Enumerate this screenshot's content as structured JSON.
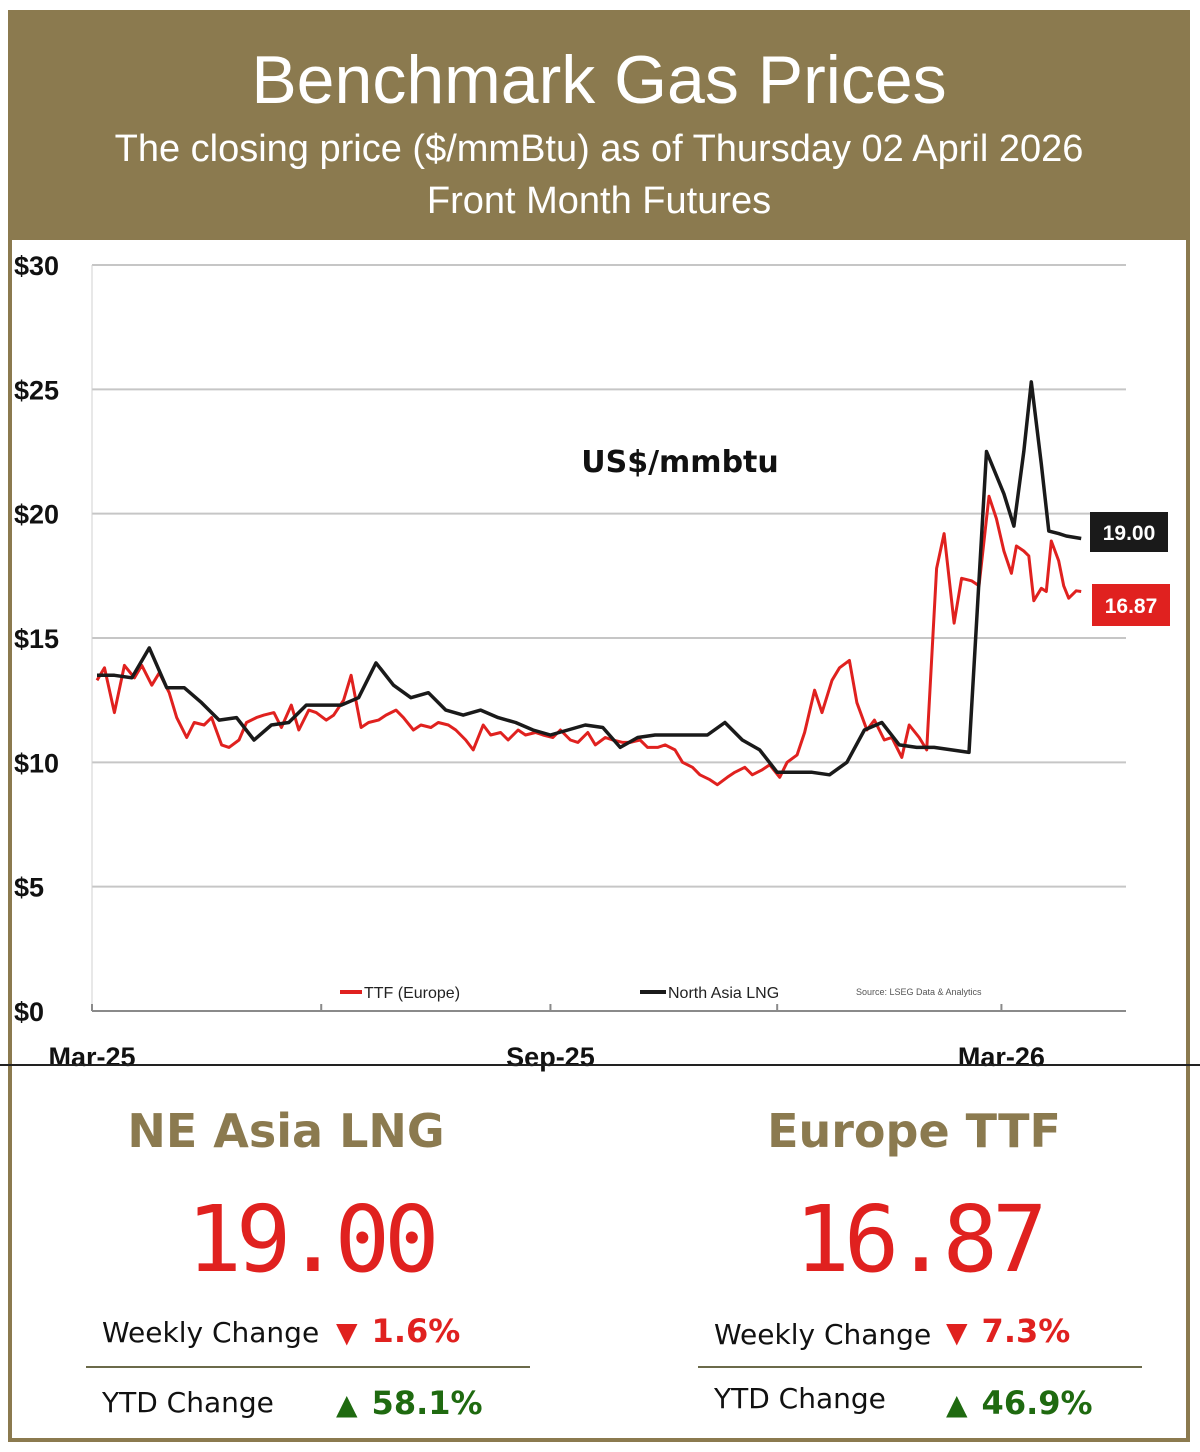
{
  "header": {
    "title": "Benchmark Gas Prices",
    "subtitle": "The closing price ($/mmBtu) as of Thursday 02 April 2026",
    "subtitle2": "Front Month  Futures"
  },
  "colors": {
    "header_bg": "#8b7a4f",
    "lng": "#1a1a1a",
    "ttf": "#e0211f",
    "up": "#1f6a10",
    "down": "#e0211f"
  },
  "chart_data": {
    "type": "line",
    "title": "US$/mmbtu",
    "ylim": [
      0,
      30
    ],
    "y_ticks": [
      "$0",
      "$5",
      "$10",
      "$15",
      "$20",
      "$25",
      "$30"
    ],
    "x_ticks": [
      "Mar-25",
      "Sep-25",
      "Mar-26"
    ],
    "grid": true,
    "legend_position": "bottom",
    "source": "Source: LSEG Data & Analytics",
    "series": [
      {
        "name": "North Asia LNG",
        "color": "#1a1a1a",
        "end_label": "19.00",
        "x": [
          "2025-03-03",
          "2025-03-10",
          "2025-03-17",
          "2025-03-24",
          "2025-03-31",
          "2025-04-07",
          "2025-04-14",
          "2025-04-21",
          "2025-04-28",
          "2025-05-05",
          "2025-05-12",
          "2025-05-19",
          "2025-05-26",
          "2025-06-02",
          "2025-06-09",
          "2025-06-16",
          "2025-06-23",
          "2025-06-30",
          "2025-07-07",
          "2025-07-14",
          "2025-07-21",
          "2025-07-28",
          "2025-08-04",
          "2025-08-11",
          "2025-08-18",
          "2025-08-25",
          "2025-09-01",
          "2025-09-08",
          "2025-09-15",
          "2025-09-22",
          "2025-09-29",
          "2025-10-06",
          "2025-10-13",
          "2025-10-20",
          "2025-10-27",
          "2025-11-03",
          "2025-11-10",
          "2025-11-17",
          "2025-11-24",
          "2025-12-01",
          "2025-12-08",
          "2025-12-15",
          "2025-12-22",
          "2025-12-29",
          "2026-01-05",
          "2026-01-12",
          "2026-01-19",
          "2026-01-26",
          "2026-02-02",
          "2026-02-09",
          "2026-02-16",
          "2026-02-23",
          "2026-03-02",
          "2026-03-06",
          "2026-03-10",
          "2026-03-13",
          "2026-03-17",
          "2026-03-20",
          "2026-03-24",
          "2026-03-27",
          "2026-04-02"
        ],
        "values": [
          13.5,
          13.5,
          13.4,
          14.6,
          13.0,
          13.0,
          12.4,
          11.7,
          11.8,
          10.9,
          11.5,
          11.6,
          12.3,
          12.3,
          12.3,
          12.6,
          14.0,
          13.1,
          12.6,
          12.8,
          12.1,
          11.9,
          12.1,
          11.8,
          11.6,
          11.3,
          11.1,
          11.3,
          11.5,
          11.4,
          10.6,
          11.0,
          11.1,
          11.1,
          11.1,
          11.1,
          11.6,
          10.9,
          10.5,
          9.6,
          9.6,
          9.6,
          9.5,
          10.0,
          11.3,
          11.6,
          10.7,
          10.6,
          10.6,
          10.5,
          10.4,
          22.5,
          20.8,
          19.5,
          22.5,
          25.3,
          22.0,
          19.3,
          19.2,
          19.1,
          19.0
        ]
      },
      {
        "name": "TTF (Europe)",
        "color": "#e0211f",
        "end_label": "16.87",
        "x": [
          "2025-03-03",
          "2025-03-06",
          "2025-03-10",
          "2025-03-14",
          "2025-03-18",
          "2025-03-21",
          "2025-03-25",
          "2025-03-28",
          "2025-04-01",
          "2025-04-04",
          "2025-04-08",
          "2025-04-11",
          "2025-04-15",
          "2025-04-18",
          "2025-04-22",
          "2025-04-25",
          "2025-04-29",
          "2025-05-02",
          "2025-05-06",
          "2025-05-09",
          "2025-05-13",
          "2025-05-16",
          "2025-05-20",
          "2025-05-23",
          "2025-05-27",
          "2025-05-30",
          "2025-06-03",
          "2025-06-06",
          "2025-06-10",
          "2025-06-13",
          "2025-06-17",
          "2025-06-20",
          "2025-06-24",
          "2025-06-27",
          "2025-07-01",
          "2025-07-04",
          "2025-07-08",
          "2025-07-11",
          "2025-07-15",
          "2025-07-18",
          "2025-07-22",
          "2025-07-25",
          "2025-07-29",
          "2025-08-01",
          "2025-08-05",
          "2025-08-08",
          "2025-08-12",
          "2025-08-15",
          "2025-08-19",
          "2025-08-22",
          "2025-08-26",
          "2025-08-29",
          "2025-09-02",
          "2025-09-05",
          "2025-09-09",
          "2025-09-12",
          "2025-09-16",
          "2025-09-19",
          "2025-09-23",
          "2025-09-26",
          "2025-09-30",
          "2025-10-03",
          "2025-10-07",
          "2025-10-10",
          "2025-10-14",
          "2025-10-17",
          "2025-10-21",
          "2025-10-24",
          "2025-10-28",
          "2025-10-31",
          "2025-11-04",
          "2025-11-07",
          "2025-11-11",
          "2025-11-14",
          "2025-11-18",
          "2025-11-21",
          "2025-11-25",
          "2025-11-28",
          "2025-12-02",
          "2025-12-05",
          "2025-12-09",
          "2025-12-12",
          "2025-12-16",
          "2025-12-19",
          "2025-12-23",
          "2025-12-26",
          "2025-12-30",
          "2026-01-02",
          "2026-01-06",
          "2026-01-09",
          "2026-01-13",
          "2026-01-16",
          "2026-01-20",
          "2026-01-23",
          "2026-01-27",
          "2026-01-30",
          "2026-02-03",
          "2026-02-06",
          "2026-02-10",
          "2026-02-13",
          "2026-02-17",
          "2026-02-20",
          "2026-02-24",
          "2026-02-27",
          "2026-03-02",
          "2026-03-05",
          "2026-03-07",
          "2026-03-10",
          "2026-03-12",
          "2026-03-14",
          "2026-03-17",
          "2026-03-19",
          "2026-03-21",
          "2026-03-24",
          "2026-03-26",
          "2026-03-28",
          "2026-03-31",
          "2026-04-02"
        ],
        "values": [
          13.3,
          13.8,
          12.0,
          13.9,
          13.4,
          13.9,
          13.1,
          13.6,
          12.8,
          11.8,
          11.0,
          11.6,
          11.5,
          11.8,
          10.7,
          10.6,
          10.9,
          11.6,
          11.8,
          11.9,
          12.0,
          11.4,
          12.3,
          11.3,
          12.1,
          12.0,
          11.7,
          11.9,
          12.5,
          13.5,
          11.4,
          11.6,
          11.7,
          11.9,
          12.1,
          11.8,
          11.3,
          11.5,
          11.4,
          11.6,
          11.5,
          11.3,
          10.9,
          10.5,
          11.5,
          11.1,
          11.2,
          10.9,
          11.3,
          11.1,
          11.2,
          11.1,
          11.0,
          11.3,
          10.9,
          10.8,
          11.2,
          10.7,
          11.0,
          10.9,
          10.8,
          10.8,
          10.9,
          10.6,
          10.6,
          10.7,
          10.5,
          10.0,
          9.8,
          9.5,
          9.3,
          9.1,
          9.4,
          9.6,
          9.8,
          9.5,
          9.7,
          9.9,
          9.4,
          10.0,
          10.3,
          11.2,
          12.9,
          12.0,
          13.3,
          13.8,
          14.1,
          12.4,
          11.3,
          11.7,
          10.9,
          11.0,
          10.2,
          11.5,
          11.0,
          10.5,
          17.8,
          19.2,
          15.6,
          17.4,
          17.3,
          17.1,
          20.7,
          19.8,
          18.5,
          17.6,
          18.7,
          18.5,
          18.3,
          16.5,
          17.0,
          16.87,
          18.9,
          18.1,
          17.1,
          16.6,
          16.9,
          16.87
        ]
      }
    ]
  },
  "stats": [
    {
      "name": "NE Asia LNG",
      "price": "19.00",
      "weekly_label": "Weekly Change",
      "weekly_arrow": "▼",
      "weekly_value": "1.6%",
      "ytd_label": "YTD Change",
      "ytd_arrow": "▲",
      "ytd_value": "58.1%"
    },
    {
      "name": "Europe TTF",
      "price": "16.87",
      "weekly_label": "Weekly Change",
      "weekly_arrow": "▼",
      "weekly_value": "7.3%",
      "ytd_label": "YTD Change",
      "ytd_arrow": "▲",
      "ytd_value": "46.9%"
    }
  ]
}
